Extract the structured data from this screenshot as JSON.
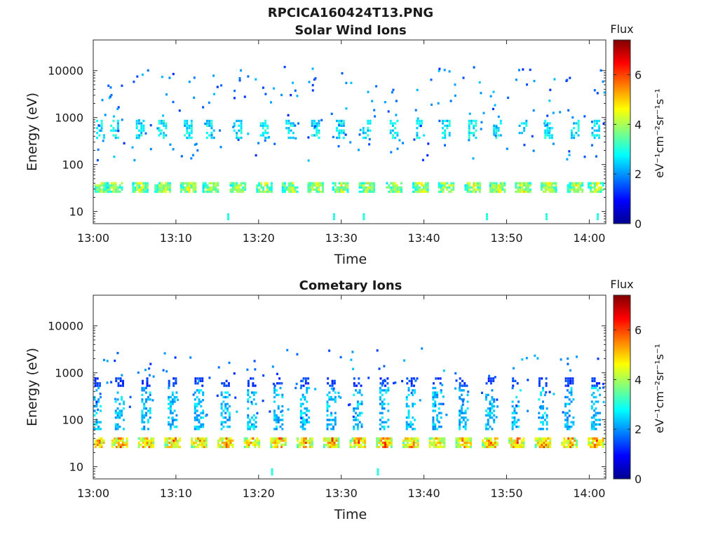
{
  "figure": {
    "title": "RPCICA160424T13.PNG"
  },
  "chart_data": [
    {
      "type": "heatmap",
      "title": "Solar Wind Ions",
      "xlabel": "Time",
      "ylabel": "Energy (eV)",
      "x_ticks": [
        "13:00",
        "13:10",
        "13:20",
        "13:30",
        "13:40",
        "13:50",
        "14:00"
      ],
      "y_ticks": [
        "10",
        "100",
        "1000",
        "10000"
      ],
      "x_range_minutes": [
        0,
        62
      ],
      "y_range_ev": [
        5.5,
        45000
      ],
      "y_scale": "log",
      "bursts_x_minutes": [
        0.9,
        2.6,
        5.7,
        8.4,
        11.5,
        14.2,
        17.5,
        20.7,
        23.8,
        26.9,
        29.9,
        33.1,
        36.4,
        39.6,
        42.7,
        45.9,
        48.9,
        52.0,
        55.1,
        58.3,
        60.8
      ],
      "bands": [
        {
          "name": "low",
          "energy_ev": [
            25,
            42
          ],
          "peak_log_flux": 5.0
        },
        {
          "name": "main",
          "energy_ev": [
            350,
            900
          ],
          "peak_log_flux": 3.2
        }
      ],
      "colorbar": {
        "label": "Flux",
        "unit": "eV⁻¹cm⁻²sr⁻¹s⁻¹",
        "ticks": [
          "0",
          "2",
          "4",
          "6"
        ],
        "range": [
          0,
          7.4
        ]
      }
    },
    {
      "type": "heatmap",
      "title": "Cometary Ions",
      "xlabel": "Time",
      "ylabel": "Energy (eV)",
      "x_ticks": [
        "13:00",
        "13:10",
        "13:20",
        "13:30",
        "13:40",
        "13:50",
        "14:00"
      ],
      "y_ticks": [
        "10",
        "100",
        "1000",
        "10000"
      ],
      "x_range_minutes": [
        0,
        62
      ],
      "y_range_ev": [
        5.5,
        45000
      ],
      "y_scale": "log",
      "bursts_x_minutes": [
        0.4,
        3.2,
        6.4,
        9.6,
        12.8,
        16.0,
        19.2,
        22.4,
        25.6,
        28.8,
        32.0,
        35.2,
        38.4,
        41.6,
        44.8,
        48.0,
        51.2,
        54.4,
        57.6,
        60.8
      ],
      "bands": [
        {
          "name": "low",
          "energy_ev": [
            25,
            42
          ],
          "peak_log_flux": 6.3
        },
        {
          "name": "tail",
          "energy_ev": [
            60,
            500
          ],
          "peak_log_flux": 2.8
        },
        {
          "name": "upper",
          "energy_ev": [
            500,
            800
          ],
          "peak_log_flux": 1.6
        }
      ],
      "colorbar": {
        "label": "Flux",
        "unit": "eV⁻¹cm⁻²sr⁻¹s⁻¹",
        "ticks": [
          "0",
          "2",
          "4",
          "6"
        ],
        "range": [
          0,
          7.4
        ]
      }
    }
  ]
}
